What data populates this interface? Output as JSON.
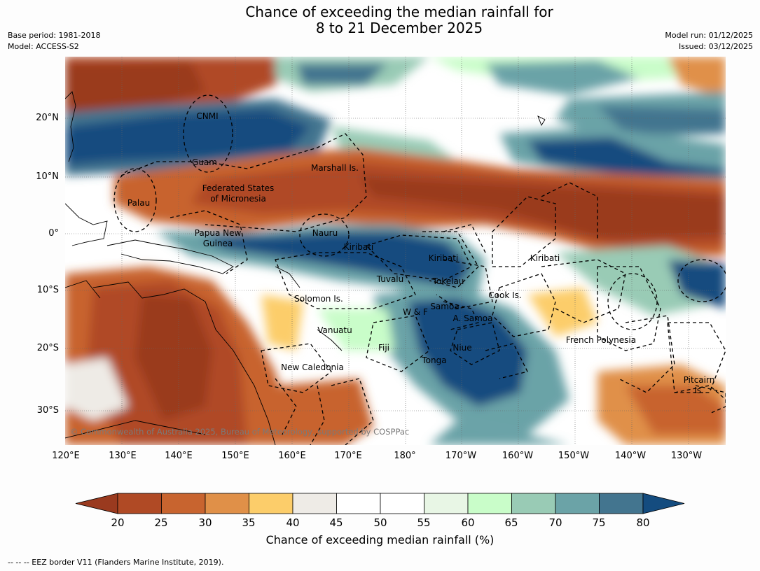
{
  "title": {
    "line1": "Chance of exceeding the median rainfall for",
    "line2": "8 to 21 December 2025"
  },
  "meta": {
    "base_period": "Base period: 1981-2018",
    "model": "Model: ACCESS-S2",
    "model_run": "Model run: 01/12/2025",
    "issued": "Issued: 03/12/2025"
  },
  "map": {
    "lat_labels": [
      "20°N",
      "10°N",
      "0°",
      "10°S",
      "20°S",
      "30°S"
    ],
    "lon_labels": [
      "120°E",
      "130°E",
      "140°E",
      "150°E",
      "160°E",
      "170°E",
      "180°",
      "170°W",
      "160°W",
      "150°W",
      "140°W",
      "130°W"
    ],
    "regions": [
      "CNMI",
      "Guam",
      "Marshall Is.",
      "Federated States",
      "of Micronesia",
      "Palau",
      "Papua New",
      "Guinea",
      "Nauru",
      "Kiribati",
      "Kiribati",
      "Kiribati",
      "Tuvalu",
      "Tokelau",
      "Cook Is.",
      "Solomon Is.",
      "Samoa",
      "W & F",
      "A. Samoa",
      "Vanuatu",
      "Fiji",
      "Niue",
      "Tonga",
      "French Polynesia",
      "New Caledonia",
      "Pitcairn",
      "Is."
    ],
    "copyright": "© Commonwealth of Australia 2025, Bureau of Meteorology, supported by COSPPac"
  },
  "colorbar": {
    "ticks": [
      "20",
      "25",
      "30",
      "35",
      "40",
      "45",
      "50",
      "55",
      "60",
      "65",
      "70",
      "75",
      "80"
    ],
    "colors": [
      "#9a3a1f",
      "#b04a25",
      "#c8642f",
      "#e09048",
      "#fccd6a",
      "#eeebe6",
      "#ffffff",
      "#ffffff",
      "#e8f6e5",
      "#c9fdc9",
      "#99cbb5",
      "#6ba3a7",
      "#43758f",
      "#144c7f"
    ],
    "label": "Chance of exceeding median rainfall (%)"
  },
  "footnote": "--  --  -- EEZ border V11 (Flanders Marine Institute, 2019)."
}
